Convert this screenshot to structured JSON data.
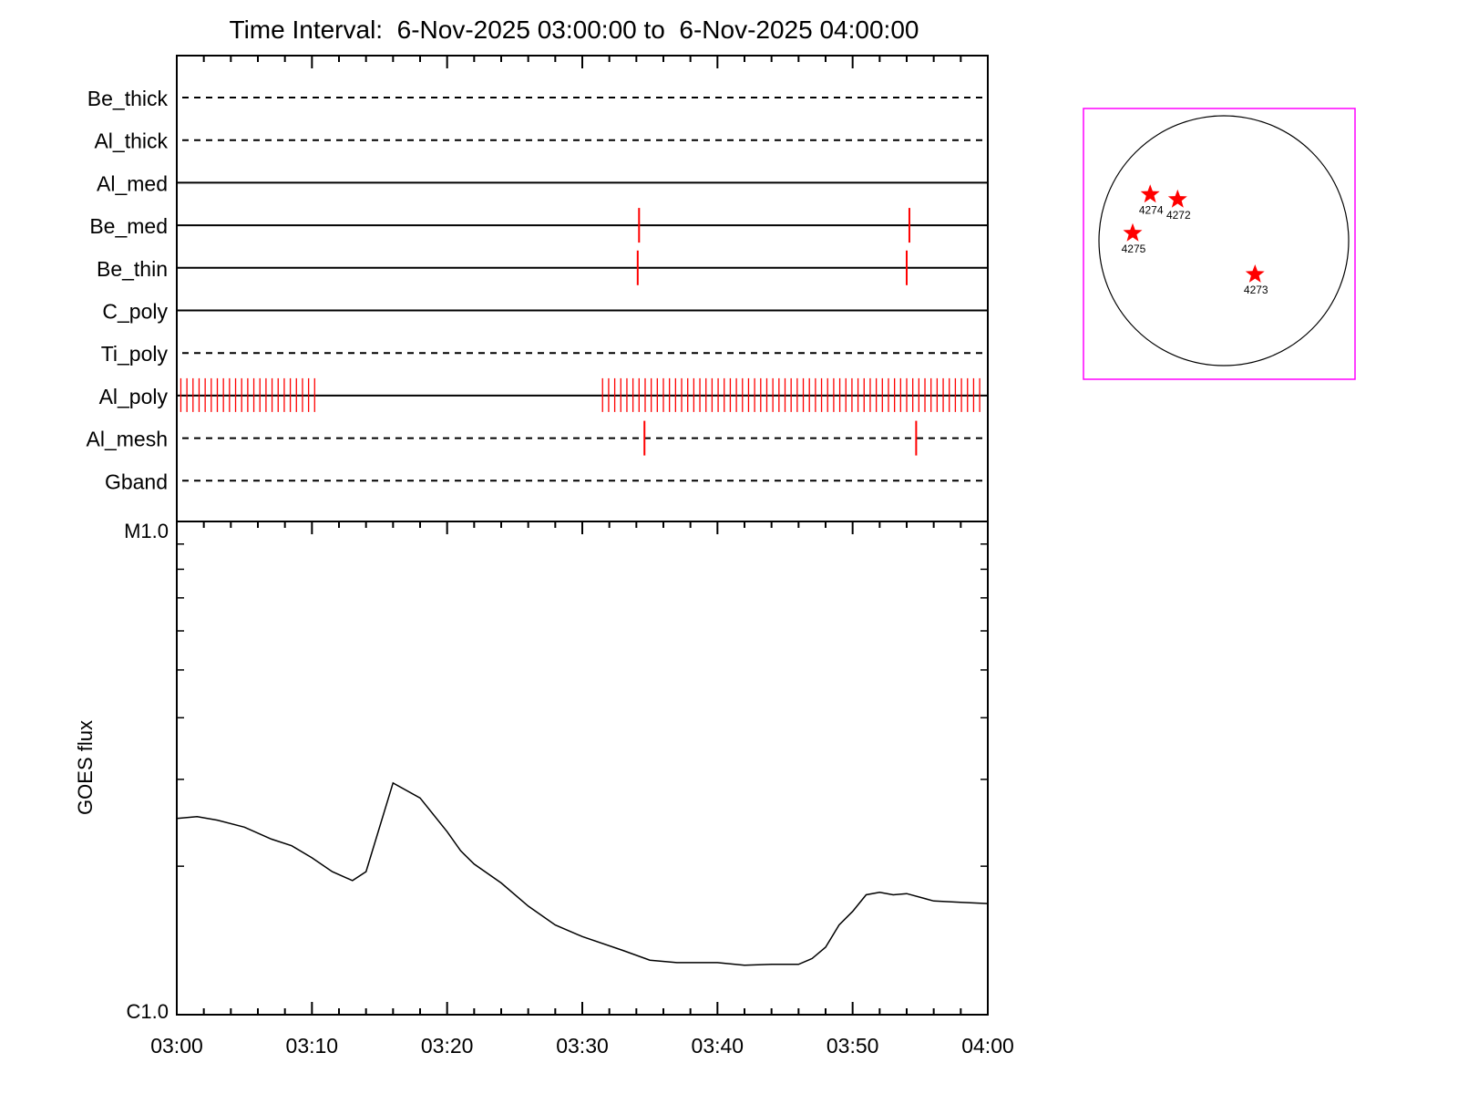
{
  "title": "Time Interval:  6-Nov-2025 03:00:00 to  6-Nov-2025 04:00:00",
  "colors": {
    "axis": "#000000",
    "event": "#ff0000",
    "map_border": "#ff00ff",
    "star": "#ff0000"
  },
  "chart_data": [
    {
      "type": "timeline",
      "x_tick_labels": [
        "03:00",
        "03:10",
        "03:20",
        "03:30",
        "03:40",
        "03:50",
        "04:00"
      ],
      "xlim": [
        0,
        60
      ],
      "rows": [
        {
          "name": "Be_thick",
          "style": "dashed",
          "events": []
        },
        {
          "name": "Al_thick",
          "style": "dashed",
          "events": []
        },
        {
          "name": "Al_med",
          "style": "solid",
          "events": []
        },
        {
          "name": "Be_med",
          "style": "solid",
          "events": [
            34.2,
            54.2
          ]
        },
        {
          "name": "Be_thin",
          "style": "solid",
          "events": [
            34.1,
            54.0
          ]
        },
        {
          "name": "C_poly",
          "style": "solid",
          "events": []
        },
        {
          "name": "Ti_poly",
          "style": "dashed",
          "events": []
        },
        {
          "name": "Al_poly",
          "style": "solid",
          "events_dense": [
            [
              0.3,
              10.4
            ],
            [
              31.5,
              59.8
            ]
          ]
        },
        {
          "name": "Al_mesh",
          "style": "dashed",
          "events": [
            34.6,
            54.7
          ]
        },
        {
          "name": "Gband",
          "style": "dashed",
          "events": []
        }
      ]
    },
    {
      "type": "line",
      "ylabel": "GOES flux",
      "x_tick_labels": [
        "03:00",
        "03:10",
        "03:20",
        "03:30",
        "03:40",
        "03:50",
        "04:00"
      ],
      "xlim": [
        0,
        60
      ],
      "y_scale": "log",
      "ylim": [
        1e-06,
        1e-05
      ],
      "y_tick_labels": [
        "C1.0",
        "M1.0"
      ],
      "x": [
        0,
        1.5,
        3,
        5,
        7,
        8.5,
        10,
        11.5,
        13,
        14,
        16,
        18,
        20,
        21,
        22,
        24,
        26,
        28,
        30,
        33,
        35,
        37,
        40,
        42,
        44,
        46,
        47,
        48,
        49,
        50,
        51,
        52,
        53,
        54,
        56,
        58,
        60
      ],
      "y": [
        2.5e-06,
        2.52e-06,
        2.48e-06,
        2.4e-06,
        2.27e-06,
        2.2e-06,
        2.08e-06,
        1.95e-06,
        1.87e-06,
        1.95e-06,
        2.95e-06,
        2.75e-06,
        2.35e-06,
        2.15e-06,
        2.02e-06,
        1.85e-06,
        1.66e-06,
        1.52e-06,
        1.44e-06,
        1.35e-06,
        1.29e-06,
        1.275e-06,
        1.275e-06,
        1.26e-06,
        1.265e-06,
        1.265e-06,
        1.3e-06,
        1.37e-06,
        1.52e-06,
        1.62e-06,
        1.75e-06,
        1.77e-06,
        1.75e-06,
        1.76e-06,
        1.7e-06,
        1.69e-06,
        1.68e-06
      ]
    }
  ],
  "sun_map": {
    "regions": [
      {
        "label": "4274",
        "x": -0.59,
        "y": 0.37
      },
      {
        "label": "4272",
        "x": -0.37,
        "y": 0.33
      },
      {
        "label": "4275",
        "x": -0.73,
        "y": 0.06
      },
      {
        "label": "4273",
        "x": 0.25,
        "y": -0.27
      }
    ]
  }
}
